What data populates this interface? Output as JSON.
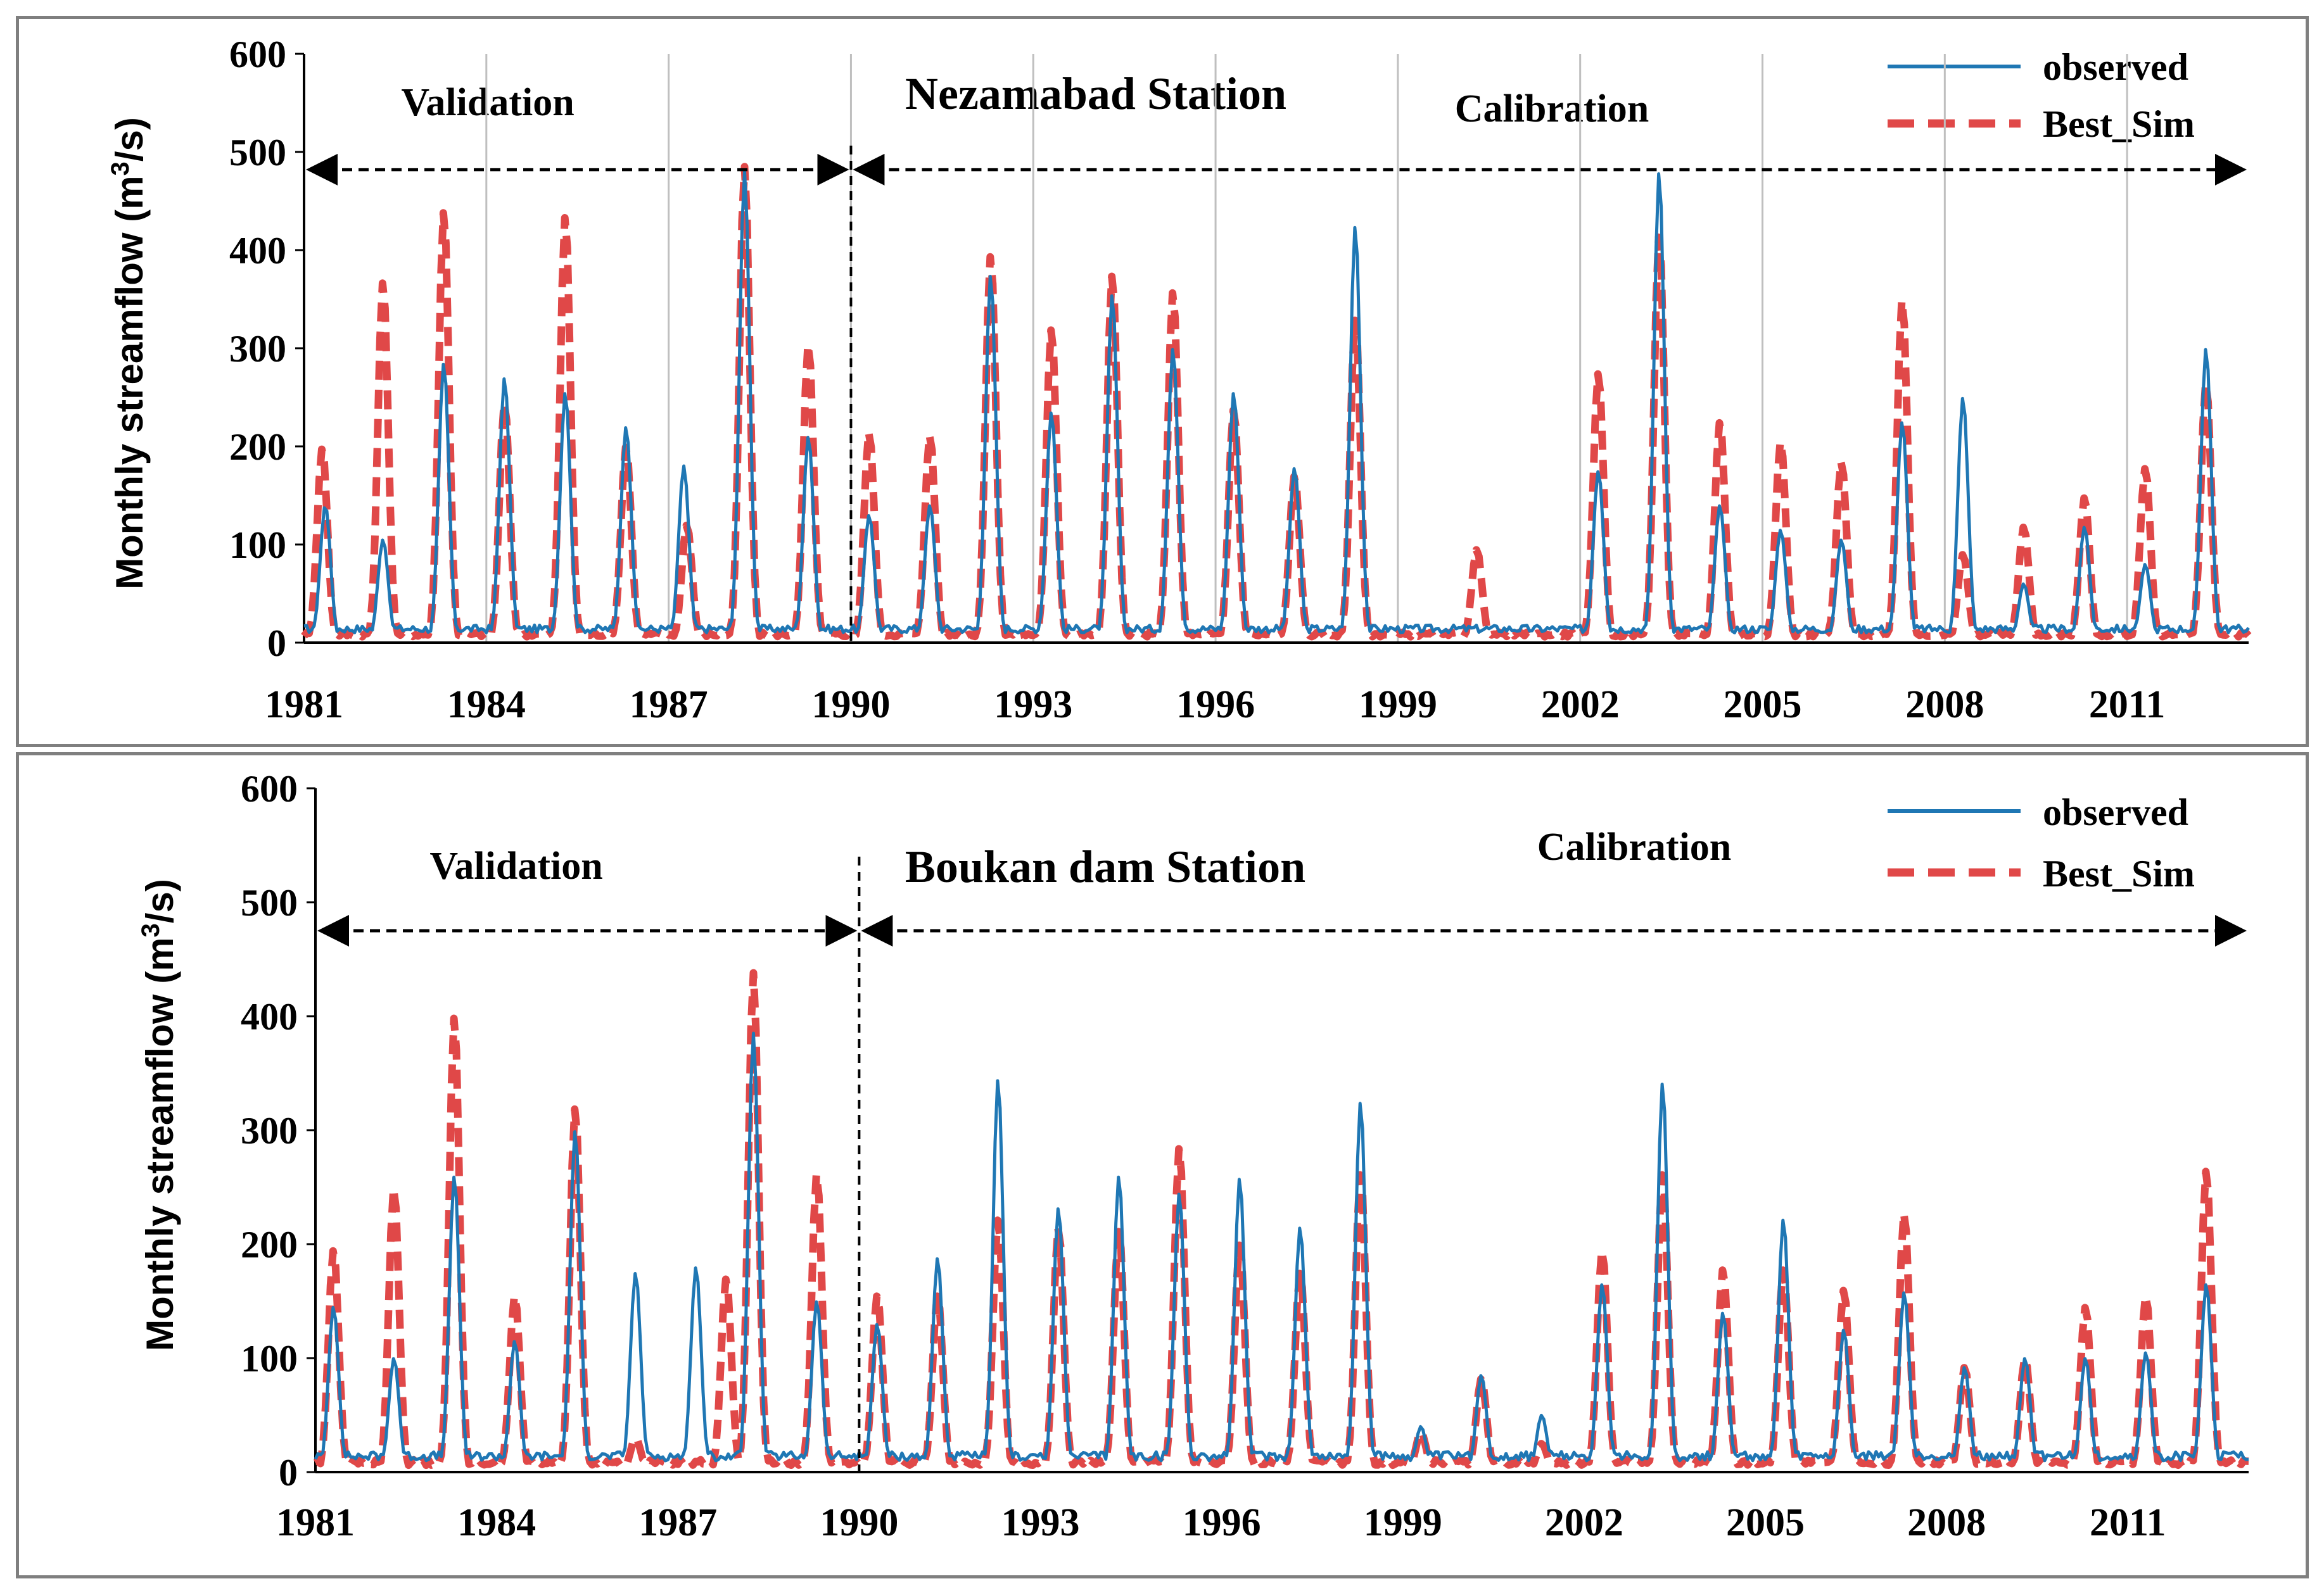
{
  "chart_data": [
    {
      "type": "line",
      "title": "Nezamabad Station",
      "ylabel": "Monthly streamflow (m3/s)",
      "ylabel_parts": [
        "Monthly streamflow (m",
        "3",
        "/s)"
      ],
      "ylim": [
        0,
        600
      ],
      "yticks": [
        "0",
        "100",
        "200",
        "300",
        "400",
        "500",
        "600"
      ],
      "xlim": [
        1981,
        2013
      ],
      "xticks": [
        "1981",
        "1984",
        "1987",
        "1990",
        "1993",
        "1996",
        "1999",
        "2002",
        "2005",
        "2008",
        "2011"
      ],
      "grid": "vertical at year ticks",
      "legend_position": "top-right",
      "split_year": 1990,
      "annotations": {
        "validation": "Validation",
        "calibration": "Calibration"
      },
      "series": [
        {
          "name": "observed",
          "color": "#1f77b4",
          "style": "solid",
          "peaks": [
            [
              1981.35,
              140
            ],
            [
              1982.3,
              105
            ],
            [
              1983.3,
              285
            ],
            [
              1984.3,
              270
            ],
            [
              1985.3,
              255
            ],
            [
              1986.3,
              220
            ],
            [
              1987.25,
              180
            ],
            [
              1988.25,
              480
            ],
            [
              1989.3,
              210
            ],
            [
              1990.3,
              130
            ],
            [
              1991.3,
              140
            ],
            [
              1992.3,
              375
            ],
            [
              1993.3,
              235
            ],
            [
              1994.3,
              355
            ],
            [
              1995.3,
              300
            ],
            [
              1996.3,
              255
            ],
            [
              1997.3,
              178
            ],
            [
              1998.3,
              425
            ],
            [
              2002.3,
              175
            ],
            [
              2003.3,
              480
            ],
            [
              2004.3,
              140
            ],
            [
              2005.3,
              115
            ],
            [
              2006.3,
              105
            ],
            [
              2007.3,
              225
            ],
            [
              2008.3,
              250
            ],
            [
              2009.3,
              60
            ],
            [
              2010.3,
              118
            ],
            [
              2011.3,
              80
            ],
            [
              2012.3,
              300
            ]
          ]
        },
        {
          "name": "Best_Sim",
          "color": "#e04848",
          "style": "dashed",
          "peaks": [
            [
              1981.3,
              198
            ],
            [
              1982.3,
              368
            ],
            [
              1983.3,
              440
            ],
            [
              1984.3,
              245
            ],
            [
              1985.3,
              435
            ],
            [
              1986.3,
              200
            ],
            [
              1987.3,
              120
            ],
            [
              1988.25,
              485
            ],
            [
              1989.3,
              305
            ],
            [
              1990.3,
              215
            ],
            [
              1991.3,
              212
            ],
            [
              1992.3,
              395
            ],
            [
              1993.3,
              320
            ],
            [
              1994.3,
              375
            ],
            [
              1995.3,
              358
            ],
            [
              1996.3,
              238
            ],
            [
              1997.3,
              170
            ],
            [
              1998.3,
              330
            ],
            [
              2000.3,
              95
            ],
            [
              2002.3,
              275
            ],
            [
              2003.3,
              415
            ],
            [
              2004.3,
              225
            ],
            [
              2005.3,
              205
            ],
            [
              2006.3,
              185
            ],
            [
              2007.3,
              350
            ],
            [
              2008.3,
              90
            ],
            [
              2009.3,
              118
            ],
            [
              2010.3,
              148
            ],
            [
              2011.3,
              178
            ],
            [
              2012.3,
              265
            ]
          ]
        }
      ]
    },
    {
      "type": "line",
      "title": "Boukan dam Station",
      "ylabel": "Monthly streamflow (m3/s)",
      "ylabel_parts": [
        "Monthly streamflow (m",
        "3",
        "/s)"
      ],
      "ylim": [
        0,
        600
      ],
      "yticks": [
        "0",
        "100",
        "200",
        "300",
        "400",
        "500",
        "600"
      ],
      "xlim": [
        1981,
        2013
      ],
      "xticks": [
        "1981",
        "1984",
        "1987",
        "1990",
        "1993",
        "1996",
        "1999",
        "2002",
        "2005",
        "2008",
        "2011"
      ],
      "grid": "none",
      "legend_position": "top-right",
      "split_year": 1990,
      "annotations": {
        "validation": "Validation",
        "calibration": "Calibration"
      },
      "series": [
        {
          "name": "observed",
          "color": "#1f77b4",
          "style": "solid",
          "peaks": [
            [
              1981.3,
              145
            ],
            [
              1982.3,
              100
            ],
            [
              1983.3,
              260
            ],
            [
              1984.3,
              115
            ],
            [
              1985.3,
              300
            ],
            [
              1986.3,
              175
            ],
            [
              1987.3,
              180
            ],
            [
              1988.25,
              385
            ],
            [
              1989.3,
              150
            ],
            [
              1990.3,
              130
            ],
            [
              1991.3,
              188
            ],
            [
              1992.3,
              345
            ],
            [
              1993.3,
              232
            ],
            [
              1994.3,
              260
            ],
            [
              1995.3,
              245
            ],
            [
              1996.3,
              258
            ],
            [
              1997.3,
              215
            ],
            [
              1998.3,
              325
            ],
            [
              1999.3,
              40
            ],
            [
              2000.3,
              85
            ],
            [
              2001.3,
              50
            ],
            [
              2002.3,
              165
            ],
            [
              2003.3,
              342
            ],
            [
              2004.3,
              140
            ],
            [
              2005.3,
              222
            ],
            [
              2006.3,
              125
            ],
            [
              2007.3,
              158
            ],
            [
              2008.3,
              92
            ],
            [
              2009.3,
              100
            ],
            [
              2010.3,
              100
            ],
            [
              2011.3,
              105
            ],
            [
              2012.3,
              165
            ]
          ]
        },
        {
          "name": "Best_Sim",
          "color": "#e04848",
          "style": "dashed",
          "peaks": [
            [
              1981.3,
              195
            ],
            [
              1982.3,
              250
            ],
            [
              1983.3,
              400
            ],
            [
              1984.3,
              155
            ],
            [
              1985.3,
              320
            ],
            [
              1986.3,
              30
            ],
            [
              1987.8,
              170
            ],
            [
              1988.25,
              438
            ],
            [
              1989.3,
              262
            ],
            [
              1990.3,
              155
            ],
            [
              1991.3,
              155
            ],
            [
              1992.3,
              222
            ],
            [
              1993.3,
              215
            ],
            [
              1994.3,
              212
            ],
            [
              1995.3,
              285
            ],
            [
              1996.3,
              200
            ],
            [
              1997.3,
              175
            ],
            [
              1998.3,
              262
            ],
            [
              1999.3,
              35
            ],
            [
              2000.3,
              82
            ],
            [
              2001.3,
              25
            ],
            [
              2002.3,
              195
            ],
            [
              2003.3,
              262
            ],
            [
              2004.3,
              178
            ],
            [
              2005.3,
              178
            ],
            [
              2006.3,
              160
            ],
            [
              2007.3,
              228
            ],
            [
              2008.3,
              92
            ],
            [
              2009.3,
              100
            ],
            [
              2010.3,
              145
            ],
            [
              2011.3,
              155
            ],
            [
              2012.3,
              265
            ]
          ]
        }
      ]
    }
  ]
}
